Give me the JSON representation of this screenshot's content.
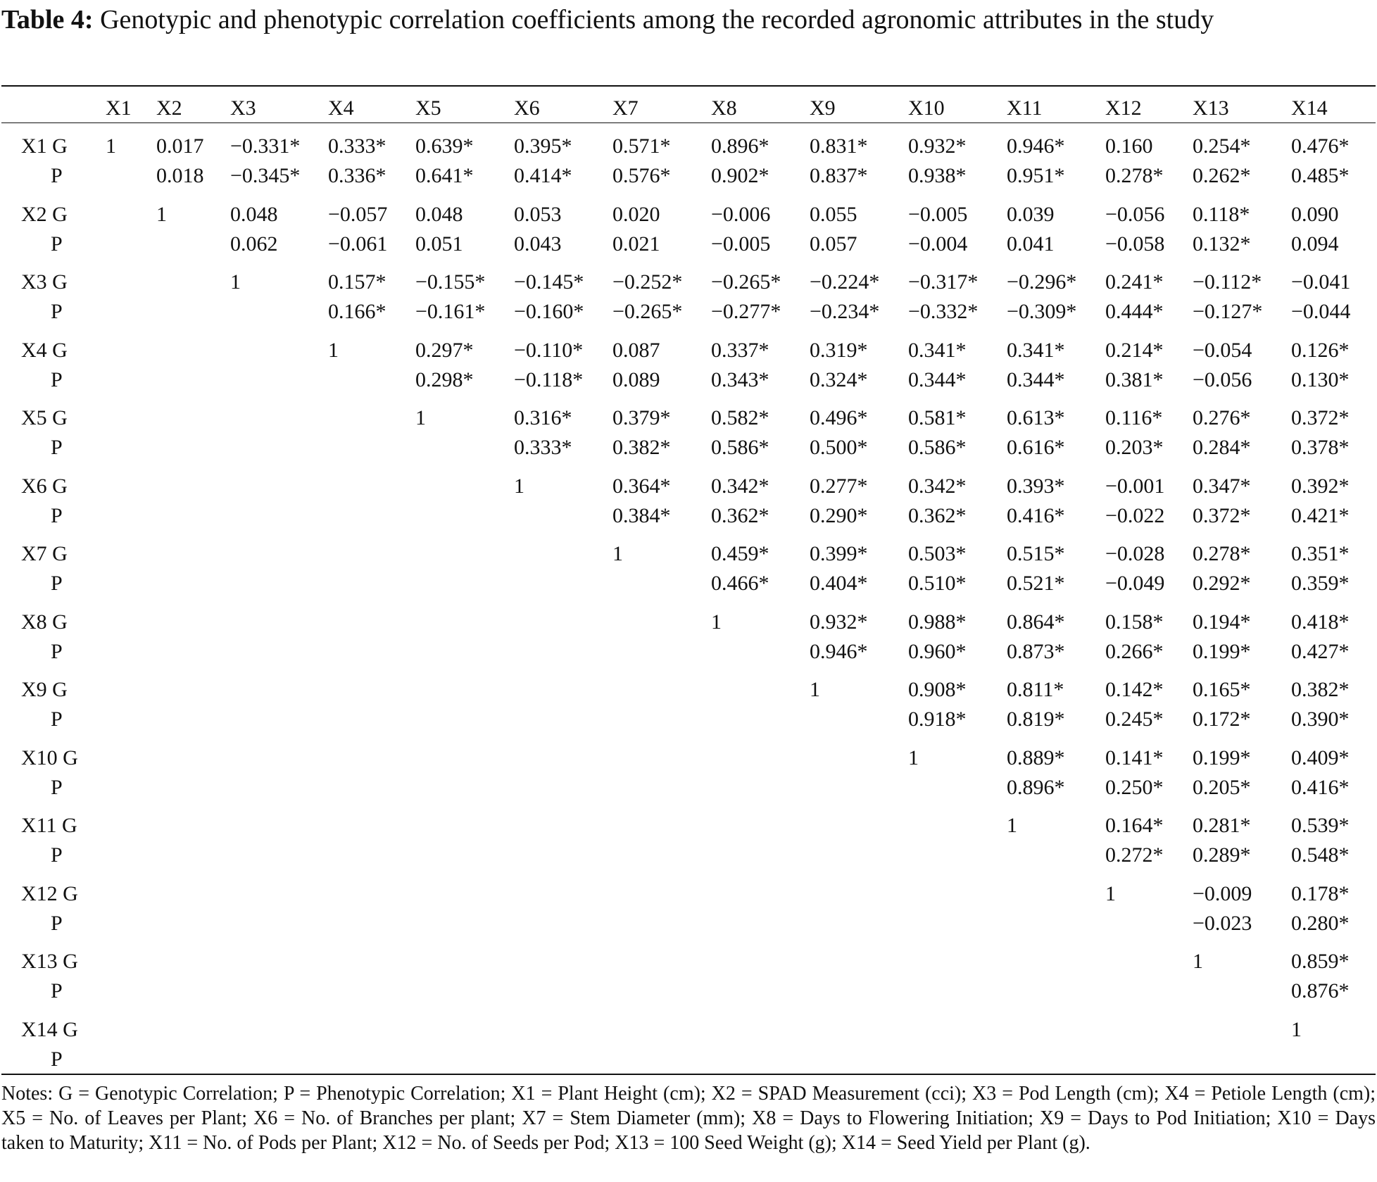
{
  "caption": {
    "label": "Table 4:",
    "text": "Genotypic and phenotypic correlation coefficients among the recorded agronomic attributes in the study"
  },
  "columns": [
    "X1",
    "X2",
    "X3",
    "X4",
    "X5",
    "X6",
    "X7",
    "X8",
    "X9",
    "X10",
    "X11",
    "X12",
    "X13",
    "X14"
  ],
  "rows": [
    {
      "label_g": "X1 G",
      "label_p": "P",
      "g": [
        "1",
        "0.017",
        "−0.331*",
        "0.333*",
        "0.639*",
        "0.395*",
        "0.571*",
        "0.896*",
        "0.831*",
        "0.932*",
        "0.946*",
        "0.160",
        "0.254*",
        "0.476*"
      ],
      "p": [
        "",
        "0.018",
        "−0.345*",
        "0.336*",
        "0.641*",
        "0.414*",
        "0.576*",
        "0.902*",
        "0.837*",
        "0.938*",
        "0.951*",
        "0.278*",
        "0.262*",
        "0.485*"
      ]
    },
    {
      "label_g": "X2 G",
      "label_p": "P",
      "g": [
        "",
        "1",
        "0.048",
        "−0.057",
        "0.048",
        "0.053",
        "0.020",
        "−0.006",
        "0.055",
        "−0.005",
        "0.039",
        "−0.056",
        "0.118*",
        "0.090"
      ],
      "p": [
        "",
        "",
        "0.062",
        "−0.061",
        "0.051",
        "0.043",
        "0.021",
        "−0.005",
        "0.057",
        "−0.004",
        "0.041",
        "−0.058",
        "0.132*",
        "0.094"
      ]
    },
    {
      "label_g": "X3 G",
      "label_p": "P",
      "g": [
        "",
        "",
        "1",
        "0.157*",
        "−0.155*",
        "−0.145*",
        "−0.252*",
        "−0.265*",
        "−0.224*",
        "−0.317*",
        "−0.296*",
        "0.241*",
        "−0.112*",
        "−0.041"
      ],
      "p": [
        "",
        "",
        "",
        "0.166*",
        "−0.161*",
        "−0.160*",
        "−0.265*",
        "−0.277*",
        "−0.234*",
        "−0.332*",
        "−0.309*",
        "0.444*",
        "−0.127*",
        "−0.044"
      ]
    },
    {
      "label_g": "X4 G",
      "label_p": "P",
      "g": [
        "",
        "",
        "",
        "1",
        "0.297*",
        "−0.110*",
        "0.087",
        "0.337*",
        "0.319*",
        "0.341*",
        "0.341*",
        "0.214*",
        "−0.054",
        "0.126*"
      ],
      "p": [
        "",
        "",
        "",
        "",
        "0.298*",
        "−0.118*",
        "0.089",
        "0.343*",
        "0.324*",
        "0.344*",
        "0.344*",
        "0.381*",
        "−0.056",
        "0.130*"
      ]
    },
    {
      "label_g": "X5 G",
      "label_p": "P",
      "g": [
        "",
        "",
        "",
        "",
        "1",
        "0.316*",
        "0.379*",
        "0.582*",
        "0.496*",
        "0.581*",
        "0.613*",
        "0.116*",
        "0.276*",
        "0.372*"
      ],
      "p": [
        "",
        "",
        "",
        "",
        "",
        "0.333*",
        "0.382*",
        "0.586*",
        "0.500*",
        "0.586*",
        "0.616*",
        "0.203*",
        "0.284*",
        "0.378*"
      ]
    },
    {
      "label_g": "X6 G",
      "label_p": "P",
      "g": [
        "",
        "",
        "",
        "",
        "",
        "1",
        "0.364*",
        "0.342*",
        "0.277*",
        "0.342*",
        "0.393*",
        "−0.001",
        "0.347*",
        "0.392*"
      ],
      "p": [
        "",
        "",
        "",
        "",
        "",
        "",
        "0.384*",
        "0.362*",
        "0.290*",
        "0.362*",
        "0.416*",
        "−0.022",
        "0.372*",
        "0.421*"
      ]
    },
    {
      "label_g": "X7 G",
      "label_p": "P",
      "g": [
        "",
        "",
        "",
        "",
        "",
        "",
        "1",
        "0.459*",
        "0.399*",
        "0.503*",
        "0.515*",
        "−0.028",
        "0.278*",
        "0.351*"
      ],
      "p": [
        "",
        "",
        "",
        "",
        "",
        "",
        "",
        "0.466*",
        "0.404*",
        "0.510*",
        "0.521*",
        "−0.049",
        "0.292*",
        "0.359*"
      ]
    },
    {
      "label_g": "X8 G",
      "label_p": "P",
      "g": [
        "",
        "",
        "",
        "",
        "",
        "",
        "",
        "1",
        "0.932*",
        "0.988*",
        "0.864*",
        "0.158*",
        "0.194*",
        "0.418*"
      ],
      "p": [
        "",
        "",
        "",
        "",
        "",
        "",
        "",
        "",
        "0.946*",
        "0.960*",
        "0.873*",
        "0.266*",
        "0.199*",
        "0.427*"
      ]
    },
    {
      "label_g": "X9 G",
      "label_p": "P",
      "g": [
        "",
        "",
        "",
        "",
        "",
        "",
        "",
        "",
        "1",
        "0.908*",
        "0.811*",
        "0.142*",
        "0.165*",
        "0.382*"
      ],
      "p": [
        "",
        "",
        "",
        "",
        "",
        "",
        "",
        "",
        "",
        "0.918*",
        "0.819*",
        "0.245*",
        "0.172*",
        "0.390*"
      ]
    },
    {
      "label_g": "X10 G",
      "label_p": "P",
      "g": [
        "",
        "",
        "",
        "",
        "",
        "",
        "",
        "",
        "",
        "1",
        "0.889*",
        "0.141*",
        "0.199*",
        "0.409*"
      ],
      "p": [
        "",
        "",
        "",
        "",
        "",
        "",
        "",
        "",
        "",
        "",
        "0.896*",
        "0.250*",
        "0.205*",
        "0.416*"
      ]
    },
    {
      "label_g": "X11 G",
      "label_p": "P",
      "g": [
        "",
        "",
        "",
        "",
        "",
        "",
        "",
        "",
        "",
        "",
        "1",
        "0.164*",
        "0.281*",
        "0.539*"
      ],
      "p": [
        "",
        "",
        "",
        "",
        "",
        "",
        "",
        "",
        "",
        "",
        "",
        "0.272*",
        "0.289*",
        "0.548*"
      ]
    },
    {
      "label_g": "X12 G",
      "label_p": "P",
      "g": [
        "",
        "",
        "",
        "",
        "",
        "",
        "",
        "",
        "",
        "",
        "",
        "1",
        "−0.009",
        "0.178*"
      ],
      "p": [
        "",
        "",
        "",
        "",
        "",
        "",
        "",
        "",
        "",
        "",
        "",
        "",
        "−0.023",
        "0.280*"
      ]
    },
    {
      "label_g": "X13 G",
      "label_p": "P",
      "g": [
        "",
        "",
        "",
        "",
        "",
        "",
        "",
        "",
        "",
        "",
        "",
        "",
        "1",
        "0.859*"
      ],
      "p": [
        "",
        "",
        "",
        "",
        "",
        "",
        "",
        "",
        "",
        "",
        "",
        "",
        "",
        "0.876*"
      ]
    },
    {
      "label_g": "X14 G",
      "label_p": "P",
      "g": [
        "",
        "",
        "",
        "",
        "",
        "",
        "",
        "",
        "",
        "",
        "",
        "",
        "",
        "1"
      ],
      "p": [
        "",
        "",
        "",
        "",
        "",
        "",
        "",
        "",
        "",
        "",
        "",
        "",
        "",
        ""
      ]
    }
  ],
  "notes": "Notes: G = Genotypic Correlation; P = Phenotypic Correlation; X1 = Plant Height (cm); X2 = SPAD Measurement (cci); X3 = Pod Length (cm); X4 = Petiole Length (cm); X5 = No. of Leaves per Plant; X6 = No. of Branches per plant; X7 = Stem Diameter (mm); X8 = Days to Flowering Initiation; X9 = Days to Pod Initiation; X10 = Days taken to Maturity; X11 = No. of Pods per Plant; X12 = No. of Seeds per Pod; X13 = 100 Seed Weight (g); X14 = Seed Yield per Plant (g)."
}
